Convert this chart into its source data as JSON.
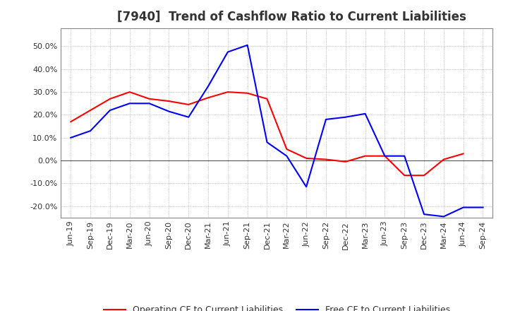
{
  "title": "[7940]  Trend of Cashflow Ratio to Current Liabilities",
  "x_labels": [
    "Jun-19",
    "Sep-19",
    "Dec-19",
    "Mar-20",
    "Jun-20",
    "Sep-20",
    "Dec-20",
    "Mar-21",
    "Jun-21",
    "Sep-21",
    "Dec-21",
    "Mar-22",
    "Jun-22",
    "Sep-22",
    "Dec-22",
    "Mar-23",
    "Jun-23",
    "Sep-23",
    "Dec-23",
    "Mar-24",
    "Jun-24",
    "Sep-24"
  ],
  "operating_cf": [
    0.17,
    0.22,
    0.27,
    0.3,
    0.27,
    0.26,
    0.245,
    0.275,
    0.3,
    0.295,
    0.27,
    0.05,
    0.01,
    0.005,
    -0.005,
    0.02,
    0.02,
    -0.065,
    -0.065,
    0.005,
    0.03,
    null
  ],
  "free_cf": [
    0.1,
    0.13,
    0.22,
    0.25,
    0.25,
    0.215,
    0.19,
    0.325,
    0.475,
    0.505,
    0.08,
    0.02,
    -0.115,
    0.18,
    0.19,
    0.205,
    0.02,
    0.02,
    -0.235,
    -0.245,
    -0.205,
    -0.205
  ],
  "ylim": [
    -0.25,
    0.58
  ],
  "yticks": [
    -0.2,
    -0.1,
    0.0,
    0.1,
    0.2,
    0.3,
    0.4,
    0.5
  ],
  "operating_color": "#FF0000",
  "free_color": "#0000FF",
  "background_color": "#FFFFFF",
  "grid_color": "#AAAAAA",
  "title_fontsize": 12,
  "tick_fontsize": 8,
  "legend_fontsize": 9,
  "title_color": "#333333"
}
